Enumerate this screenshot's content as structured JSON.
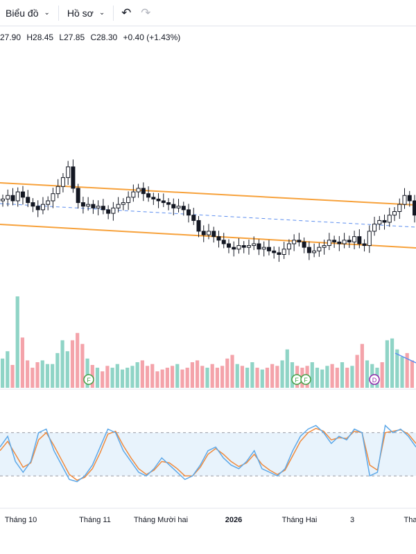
{
  "toolbar": {
    "chart_menu": "Biểu đồ",
    "profile_menu": "Hồ sơ",
    "undo_icon": "undo-icon",
    "redo_icon": "redo-icon"
  },
  "ohlc": {
    "open": "27.90",
    "high": "H28.45",
    "low": "L27.85",
    "close": "C28.30",
    "change": "+0.40 (+1.43%)"
  },
  "colors": {
    "up": "#26a69a",
    "down": "#ef5350",
    "vol_up": "#8fd4c6",
    "vol_down": "#f4a3aa",
    "channel": "#f7a13a",
    "midline": "#5b8def",
    "stoch_k": "#5da8e8",
    "stoch_d": "#f08a3c",
    "band_fill": "#e8f3fc"
  },
  "chart_data": {
    "type": "candlestick",
    "x_labels": [
      "Tháng 10",
      "Tháng 11",
      "Tháng Mười hai",
      "2026",
      "Tháng Hai",
      "3",
      "Tha"
    ],
    "event_markers": [
      "F",
      "F",
      "F",
      "D"
    ],
    "price_closes": [
      29.2,
      29.4,
      29.1,
      29.6,
      29.3,
      29.0,
      28.8,
      28.6,
      28.9,
      29.1,
      29.5,
      29.9,
      30.4,
      31.0,
      29.8,
      29.0,
      28.8,
      28.9,
      28.7,
      28.8,
      28.6,
      28.4,
      28.7,
      28.9,
      29.0,
      29.3,
      29.6,
      29.8,
      29.5,
      29.3,
      29.2,
      29.1,
      29.0,
      28.9,
      28.7,
      28.8,
      28.6,
      28.3,
      28.0,
      27.4,
      27.2,
      27.4,
      27.1,
      26.9,
      26.7,
      26.5,
      26.4,
      26.6,
      26.5,
      26.6,
      26.7,
      26.4,
      26.5,
      26.3,
      26.2,
      26.1,
      26.4,
      26.7,
      26.9,
      26.8,
      26.5,
      26.2,
      26.3,
      26.5,
      26.6,
      26.9,
      26.8,
      26.7,
      26.9,
      26.8,
      27.1,
      26.7,
      26.6,
      27.4,
      27.8,
      28.0,
      27.9,
      28.3,
      28.5,
      28.9,
      29.4,
      29.1,
      28.3
    ],
    "volume": [
      32,
      40,
      25,
      100,
      55,
      30,
      22,
      28,
      30,
      26,
      26,
      38,
      52,
      40,
      52,
      60,
      48,
      32,
      25,
      22,
      18,
      24,
      22,
      26,
      20,
      22,
      24,
      28,
      30,
      24,
      26,
      18,
      20,
      22,
      24,
      26,
      20,
      22,
      28,
      30,
      24,
      22,
      26,
      22,
      24,
      32,
      36,
      26,
      24,
      22,
      28,
      22,
      20,
      22,
      26,
      24,
      30,
      42,
      28,
      24,
      22,
      24,
      28,
      22,
      20,
      24,
      26,
      22,
      28,
      22,
      24,
      36,
      48,
      30,
      26,
      22,
      28,
      52,
      54,
      42,
      34,
      38,
      30
    ],
    "stoch_k": [
      60,
      75,
      40,
      25,
      40,
      80,
      85,
      55,
      35,
      15,
      12,
      20,
      35,
      60,
      85,
      80,
      55,
      40,
      25,
      20,
      30,
      45,
      35,
      25,
      15,
      20,
      35,
      55,
      60,
      45,
      35,
      30,
      40,
      55,
      30,
      25,
      20,
      30,
      55,
      75,
      85,
      90,
      80,
      65,
      75,
      70,
      85,
      80,
      20,
      25,
      90,
      80,
      85,
      75,
      60
    ],
    "stoch_d": [
      55,
      68,
      50,
      32,
      38,
      70,
      80,
      62,
      42,
      22,
      14,
      18,
      30,
      52,
      78,
      82,
      62,
      45,
      30,
      22,
      28,
      40,
      38,
      30,
      20,
      20,
      32,
      50,
      58,
      50,
      40,
      33,
      38,
      50,
      36,
      28,
      22,
      28,
      48,
      68,
      80,
      86,
      82,
      70,
      73,
      72,
      82,
      80,
      35,
      28,
      80,
      82,
      84,
      78,
      65
    ],
    "ylim_stoch": [
      0,
      100
    ],
    "grid": false
  }
}
